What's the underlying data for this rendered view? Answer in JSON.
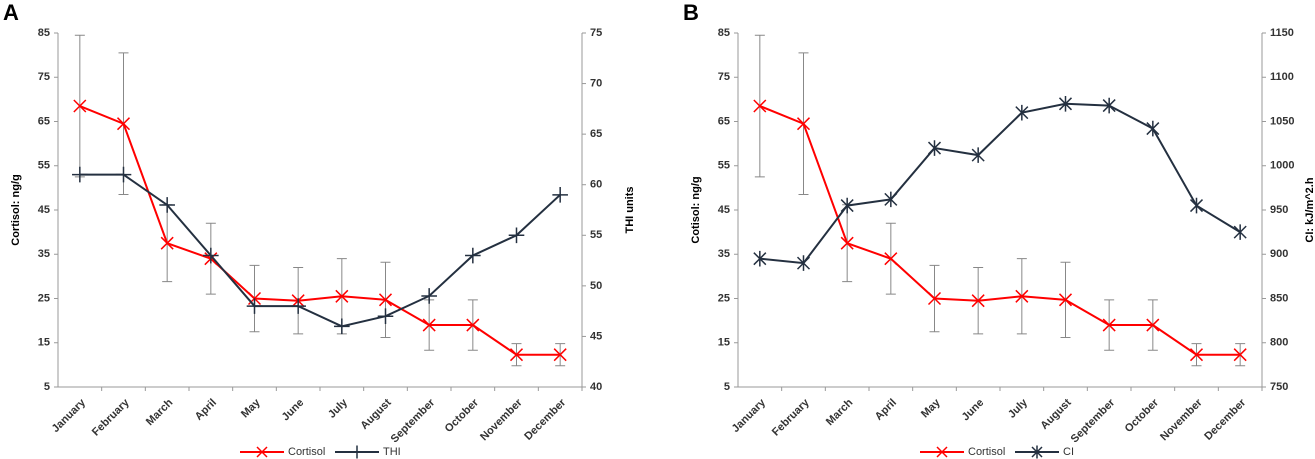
{
  "chart_data": [
    {
      "type": "line",
      "label": "A",
      "ylabel": "Cortisol: ng/g",
      "y2label": "THI units",
      "legend": "bottom",
      "categories": [
        "January",
        "February",
        "March",
        "April",
        "May",
        "June",
        "July",
        "August",
        "September",
        "October",
        "November",
        "December"
      ],
      "ylim": [
        5,
        85
      ],
      "yticks": [
        5,
        15,
        25,
        35,
        45,
        55,
        65,
        75,
        85
      ],
      "y2lim": [
        40,
        75
      ],
      "y2ticks": [
        40,
        45,
        50,
        55,
        60,
        65,
        70,
        75
      ],
      "series": [
        {
          "name": "Cortisol",
          "color": "#ff0000",
          "marker": "x",
          "axis": "y",
          "values": [
            68.5,
            64.5,
            37.5,
            34,
            25,
            24.5,
            25.5,
            24.7,
            19,
            19,
            12.3,
            12.3
          ],
          "errors": [
            16,
            16,
            8.7,
            8,
            7.5,
            7.5,
            8.5,
            8.5,
            5.7,
            5.7,
            2.5,
            2.5
          ]
        },
        {
          "name": "THI",
          "color": "#243040",
          "marker": "+",
          "axis": "y2",
          "values": [
            61,
            61,
            58,
            53,
            48,
            48,
            46,
            47,
            49,
            53,
            55,
            59
          ]
        }
      ]
    },
    {
      "type": "line",
      "label": "B",
      "ylabel": "Cotisol: ng/g",
      "y2label": "CI: kJ/m^2.h",
      "legend": "bottom",
      "categories": [
        "January",
        "February",
        "March",
        "April",
        "May",
        "June",
        "July",
        "August",
        "September",
        "October",
        "November",
        "December"
      ],
      "ylim": [
        5,
        85
      ],
      "yticks": [
        5,
        15,
        25,
        35,
        45,
        55,
        65,
        75,
        85
      ],
      "y2lim": [
        750,
        1150
      ],
      "y2ticks": [
        750,
        800,
        850,
        900,
        950,
        1000,
        1050,
        1100,
        1150
      ],
      "series": [
        {
          "name": "Cortisol",
          "color": "#ff0000",
          "marker": "x",
          "axis": "y",
          "values": [
            68.5,
            64.5,
            37.5,
            34,
            25,
            24.5,
            25.5,
            24.7,
            19,
            19,
            12.3,
            12.3
          ],
          "errors": [
            16,
            16,
            8.7,
            8,
            7.5,
            7.5,
            8.5,
            8.5,
            5.7,
            5.7,
            2.5,
            2.5
          ]
        },
        {
          "name": "CI",
          "color": "#243040",
          "marker": "*",
          "axis": "y2",
          "values": [
            895,
            890,
            955,
            962,
            1020,
            1012,
            1060,
            1070,
            1068,
            1042,
            955,
            925
          ]
        }
      ]
    }
  ]
}
